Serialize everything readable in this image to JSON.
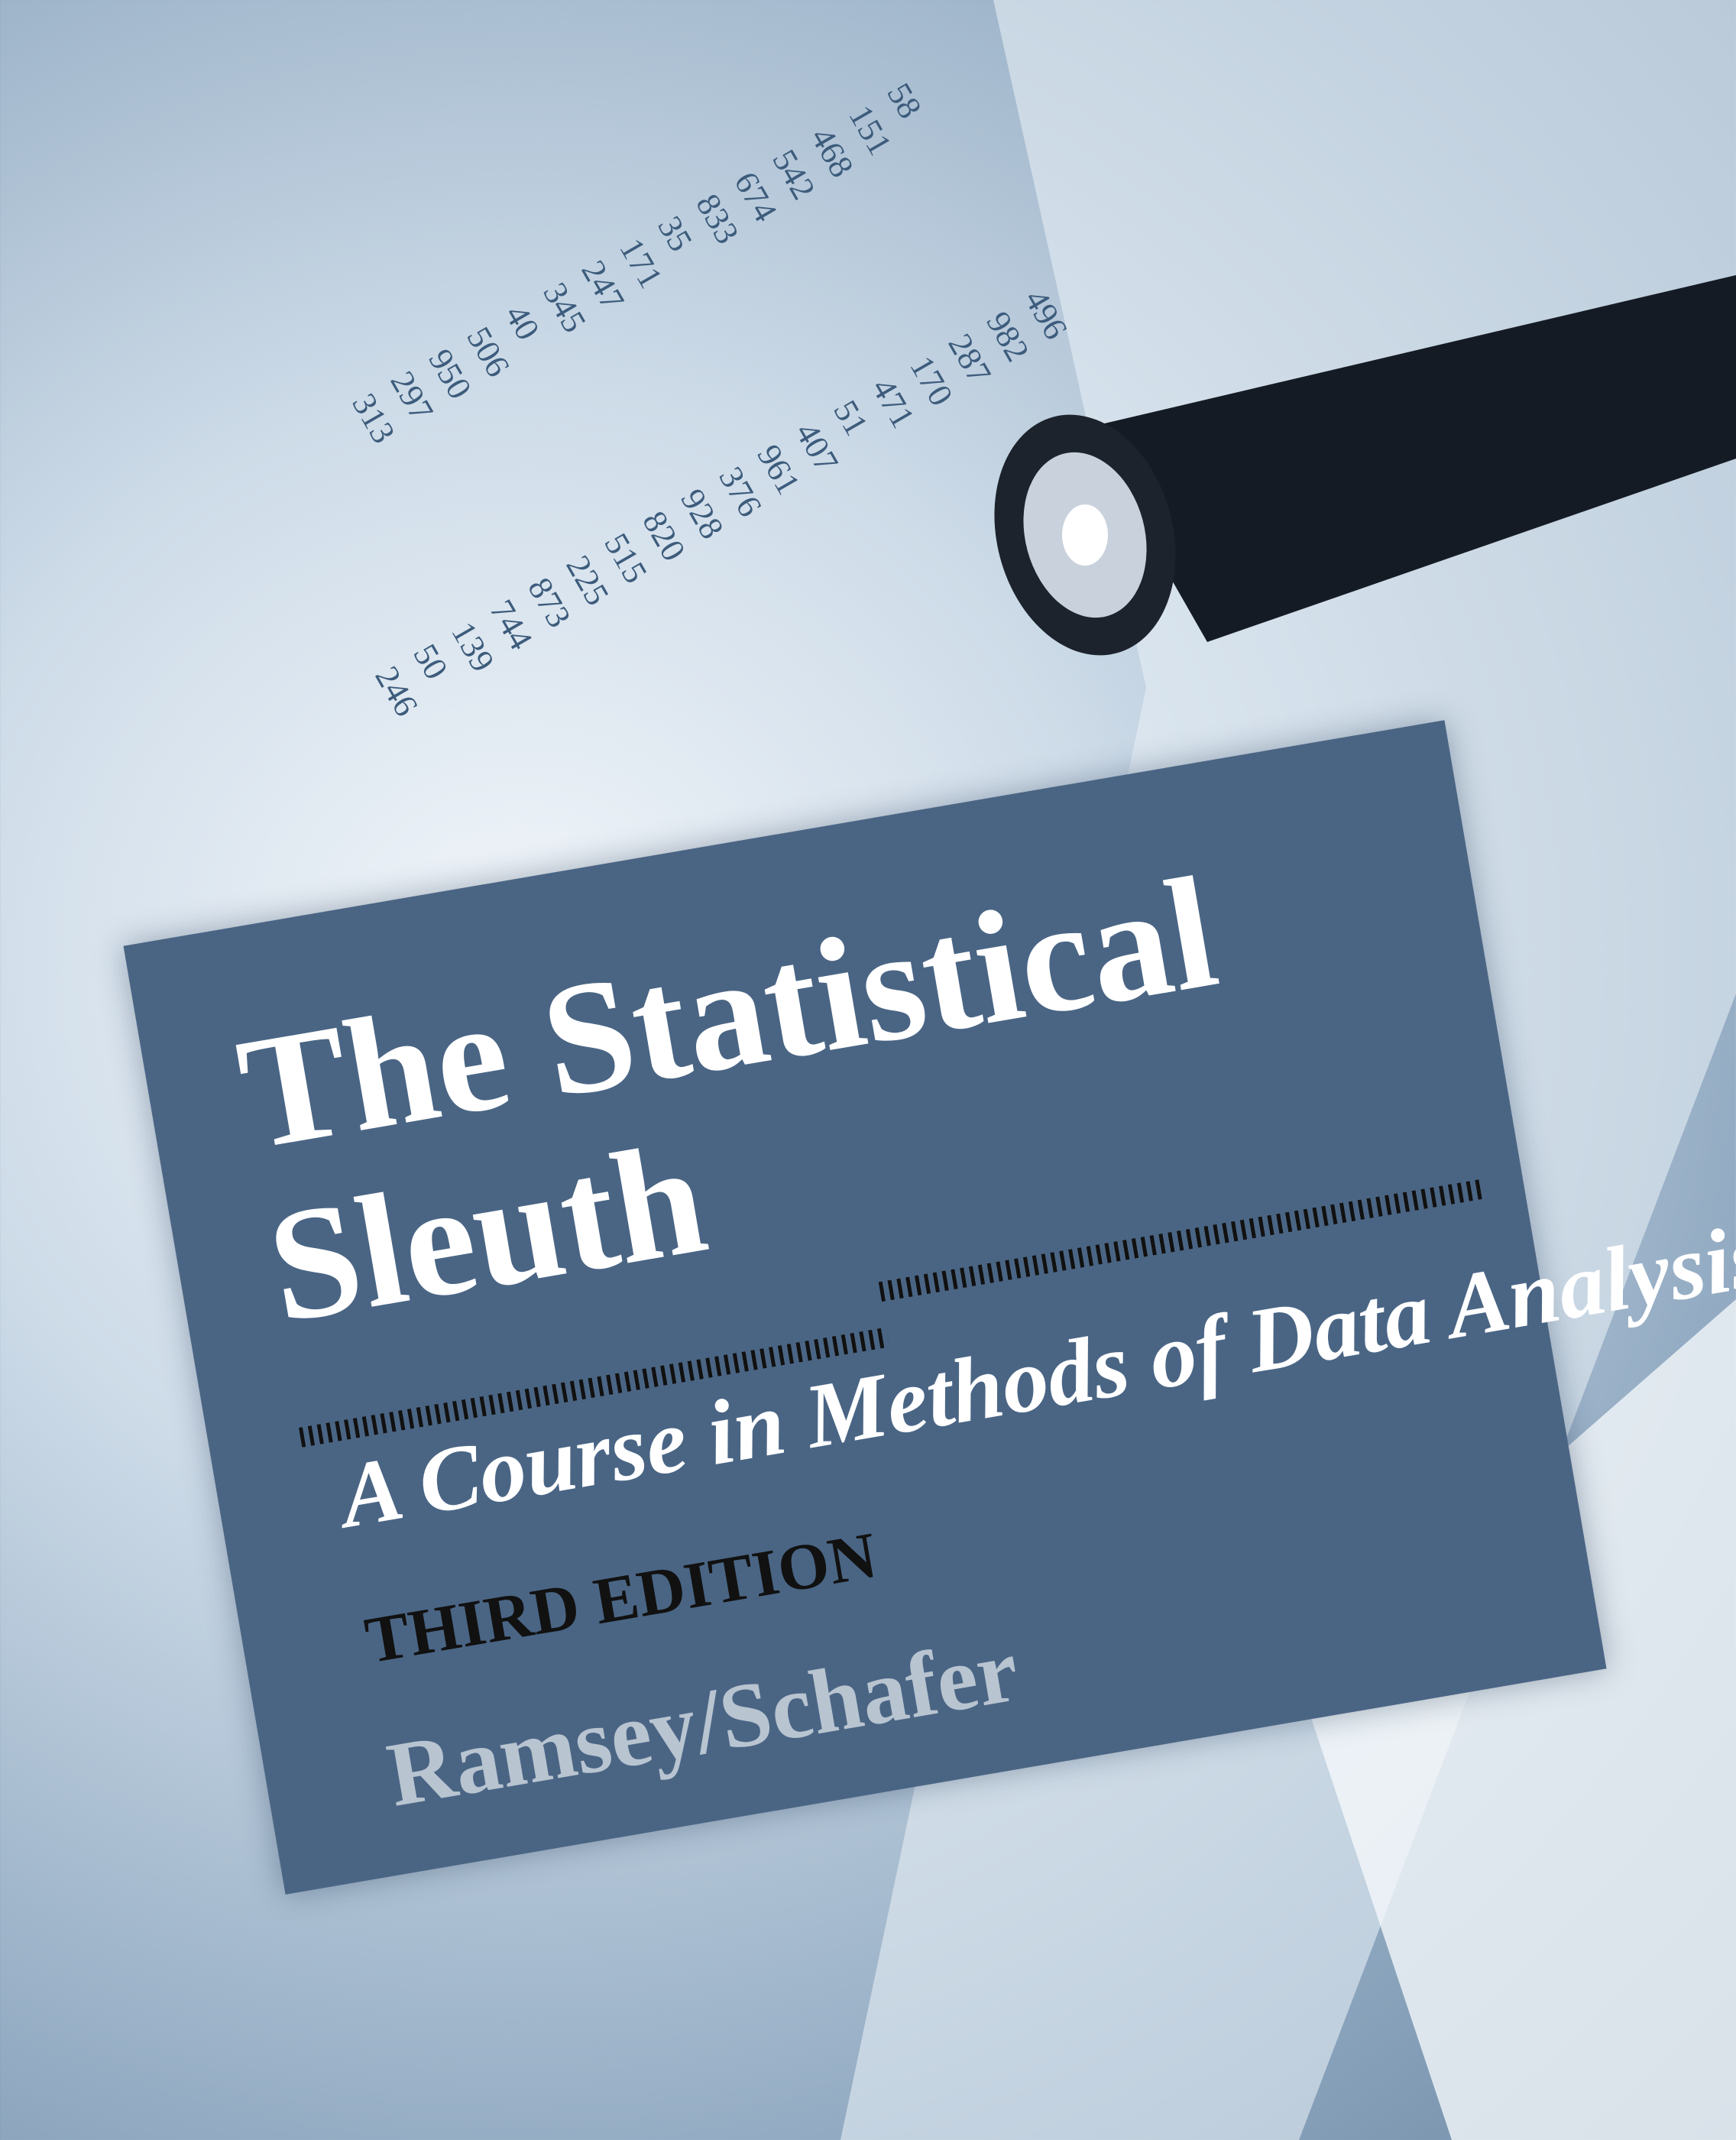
{
  "cover": {
    "title_lines": [
      "The Statistical",
      "Sleuth"
    ],
    "subtitle": "A Course in Methods of Data Analysis",
    "edition": "THIRD EDITION",
    "authors": "Ramsey/Schafer",
    "background_numbers": [
      [
        "58",
        "151",
        "468",
        "542",
        "674",
        "833",
        "35",
        "171",
        "247",
        "345",
        "40",
        "506",
        "950",
        "297",
        "313"
      ],
      [
        "496",
        "982",
        "287",
        "170",
        "471",
        "51",
        "407",
        "961",
        "376",
        "928",
        "820",
        "515",
        "225",
        "873",
        "744",
        "139",
        "50",
        "246"
      ]
    ]
  }
}
